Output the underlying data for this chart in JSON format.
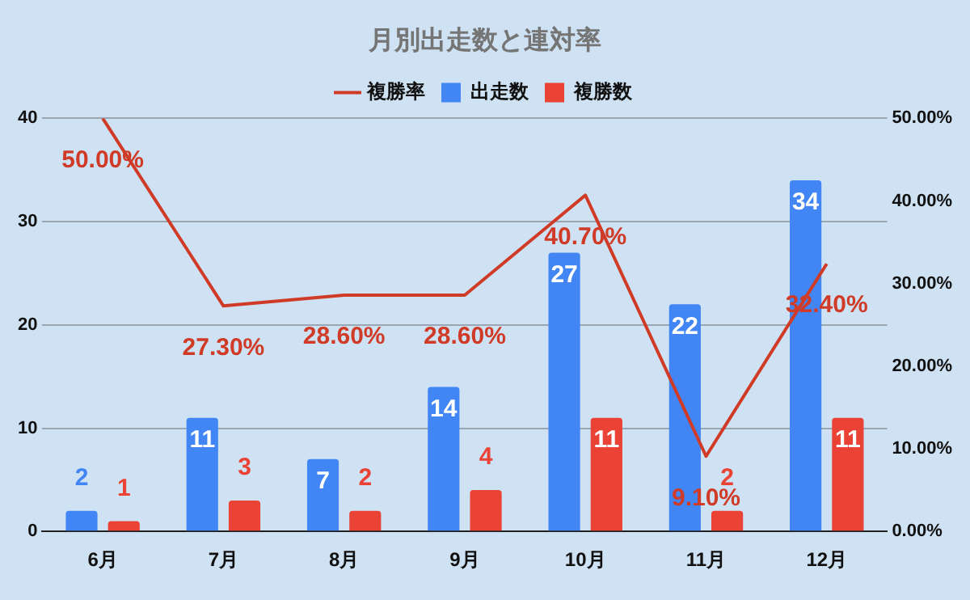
{
  "chart_data": {
    "type": "bar",
    "title": "月別出走数と連対率",
    "categories": [
      "6月",
      "7月",
      "8月",
      "9月",
      "10月",
      "11月",
      "12月"
    ],
    "series": [
      {
        "name": "出走数",
        "color": "#4285f4",
        "values": [
          2,
          11,
          7,
          14,
          27,
          22,
          34
        ]
      },
      {
        "name": "複勝数",
        "color": "#ea4335",
        "values": [
          1,
          3,
          2,
          4,
          11,
          2,
          11
        ]
      },
      {
        "name": "複勝率",
        "type": "line",
        "axis": "y2",
        "color": "#d03b27",
        "values": [
          50,
          27.3,
          28.6,
          28.6,
          40.7,
          9.1,
          32.4
        ],
        "value_labels": [
          "50.00%",
          "27.30%",
          "28.60%",
          "28.60%",
          "40.70%",
          "9.10%",
          "32.40%"
        ]
      }
    ],
    "ylim": [
      0,
      40
    ],
    "yticks": [
      0,
      10,
      20,
      30,
      40
    ],
    "y2lim": [
      0,
      50
    ],
    "y2ticks": [
      {
        "value": 0,
        "label": "0.00%"
      },
      {
        "value": 10,
        "label": "10.00%"
      },
      {
        "value": 20,
        "label": "20.00%"
      },
      {
        "value": 30,
        "label": "30.00%"
      },
      {
        "value": 40,
        "label": "40.00%"
      },
      {
        "value": 50,
        "label": "50.00%"
      }
    ],
    "grid": "y",
    "legend": "top",
    "data_labels": true,
    "marker": "none",
    "line_style": "solid"
  }
}
